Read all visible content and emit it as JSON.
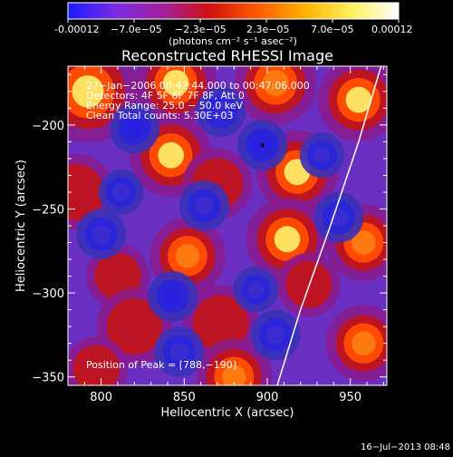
{
  "colorbar": {
    "tick_labels": [
      "-0.00012",
      "−7.0e−05",
      "−2.3e−05",
      "2.3e−05",
      "7.0e−05",
      "0.00012"
    ],
    "unit_label": "(photons cm⁻² s⁻¹ asec⁻²)",
    "colors": [
      "#1a1aff",
      "#7a2be0",
      "#a020a0",
      "#d01010",
      "#ff5a00",
      "#ffb000",
      "#fff060",
      "#ffffff"
    ]
  },
  "info": {
    "time_range": "27−Jan−2006 00:42:44.000 to 00:47:06.000",
    "detectors": "Detectors: 4F 5F 6F 7F 8F, Att 0",
    "energy_range": "Energy Range: 25.0 − 50.0 keV",
    "clean_counts": "Clean    Total counts: 5.30E+03",
    "peak": "Position of Peak = [788,−190]"
  },
  "footer": {
    "timestamp": "16−Jul−2013 08:48"
  },
  "chart_data": {
    "type": "heatmap",
    "title": "Reconstructed RHESSI Image",
    "xlabel": "Heliocentric X (arcsec)",
    "ylabel": "Heliocentric Y (arcsec)",
    "xlim": [
      780,
      972
    ],
    "ylim": [
      -355,
      -165
    ],
    "x_ticks": [
      800,
      850,
      900,
      950
    ],
    "y_ticks": [
      -200,
      -250,
      -300,
      -350
    ],
    "x_tick_labels": [
      "800",
      "850",
      "900",
      "950"
    ],
    "y_tick_labels": [
      "−200",
      "−250",
      "−300",
      "−350"
    ],
    "colorbar_range": [
      -0.00012,
      0.00012
    ],
    "peak_position": [
      788,
      -190
    ],
    "limb_curve": [
      [
        970,
        -160
      ],
      [
        955,
        -210
      ],
      [
        938,
        -260
      ],
      [
        920,
        -310
      ],
      [
        906,
        -355
      ]
    ],
    "blobs": [
      {
        "x": 792,
        "y": -180,
        "v": 1.0,
        "s": 16
      },
      {
        "x": 845,
        "y": -175,
        "v": 0.9,
        "s": 13
      },
      {
        "x": 905,
        "y": -175,
        "v": 0.8,
        "s": 13
      },
      {
        "x": 842,
        "y": -218,
        "v": 1.0,
        "s": 13
      },
      {
        "x": 870,
        "y": -235,
        "v": 0.6,
        "s": 11
      },
      {
        "x": 918,
        "y": -228,
        "v": 1.0,
        "s": 13
      },
      {
        "x": 955,
        "y": -185,
        "v": 0.9,
        "s": 13
      },
      {
        "x": 958,
        "y": -270,
        "v": 0.8,
        "s": 12
      },
      {
        "x": 785,
        "y": -240,
        "v": 0.55,
        "s": 12
      },
      {
        "x": 810,
        "y": -290,
        "v": 0.6,
        "s": 10
      },
      {
        "x": 852,
        "y": -278,
        "v": 0.75,
        "s": 12
      },
      {
        "x": 912,
        "y": -268,
        "v": 0.95,
        "s": 13
      },
      {
        "x": 925,
        "y": -295,
        "v": 0.6,
        "s": 10
      },
      {
        "x": 820,
        "y": -320,
        "v": 0.5,
        "s": 12
      },
      {
        "x": 872,
        "y": -318,
        "v": 0.55,
        "s": 12
      },
      {
        "x": 880,
        "y": -350,
        "v": 0.65,
        "s": 12
      },
      {
        "x": 958,
        "y": -330,
        "v": 0.7,
        "s": 12
      },
      {
        "x": 797,
        "y": -345,
        "v": 0.4,
        "s": 10
      },
      {
        "x": 820,
        "y": -202,
        "v": -1.0,
        "s": 10
      },
      {
        "x": 897,
        "y": -212,
        "v": -1.0,
        "s": 10
      },
      {
        "x": 933,
        "y": -218,
        "v": -0.8,
        "s": 9
      },
      {
        "x": 812,
        "y": -240,
        "v": -0.7,
        "s": 9
      },
      {
        "x": 862,
        "y": -248,
        "v": -0.7,
        "s": 10
      },
      {
        "x": 943,
        "y": -255,
        "v": -0.75,
        "s": 10
      },
      {
        "x": 843,
        "y": -302,
        "v": -0.9,
        "s": 10
      },
      {
        "x": 893,
        "y": -298,
        "v": -0.8,
        "s": 9
      },
      {
        "x": 847,
        "y": -335,
        "v": -0.5,
        "s": 10
      },
      {
        "x": 905,
        "y": -325,
        "v": -0.5,
        "s": 10
      },
      {
        "x": 872,
        "y": -192,
        "v": -0.55,
        "s": 10
      },
      {
        "x": 800,
        "y": -265,
        "v": -0.6,
        "s": 10
      }
    ]
  }
}
